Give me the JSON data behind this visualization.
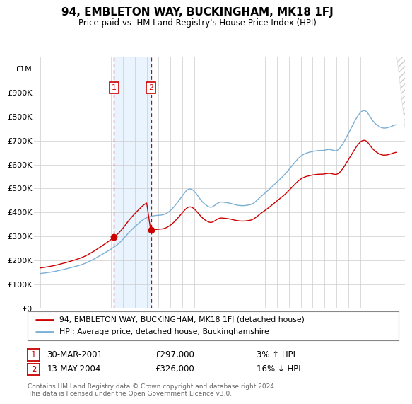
{
  "title": "94, EMBLETON WAY, BUCKINGHAM, MK18 1FJ",
  "subtitle": "Price paid vs. HM Land Registry's House Price Index (HPI)",
  "legend_label_red": "94, EMBLETON WAY, BUCKINGHAM, MK18 1FJ (detached house)",
  "legend_label_blue": "HPI: Average price, detached house, Buckinghamshire",
  "annotation1_date": "30-MAR-2001",
  "annotation1_price": 297000,
  "annotation1_year": 2001.25,
  "annotation1_hpi": "3% ↑ HPI",
  "annotation2_date": "13-MAY-2004",
  "annotation2_price": 326000,
  "annotation2_year": 2004.37,
  "annotation2_hpi": "16% ↓ HPI",
  "footer": "Contains HM Land Registry data © Crown copyright and database right 2024.\nThis data is licensed under the Open Government Licence v3.0.",
  "red_color": "#cc0000",
  "blue_color": "#7bafd4",
  "shade_color": "#ddeeff",
  "anno_color": "#cc0000",
  "ylim": [
    0,
    1050000
  ],
  "xlim_left": 1994.5,
  "xlim_right": 2025.8,
  "yticks": [
    0,
    100000,
    200000,
    300000,
    400000,
    500000,
    600000,
    700000,
    800000,
    900000,
    1000000
  ],
  "ytick_labels": [
    "£0",
    "£100K",
    "£200K",
    "£300K",
    "£400K",
    "£500K",
    "£600K",
    "£700K",
    "£800K",
    "£900K",
    "£1M"
  ]
}
